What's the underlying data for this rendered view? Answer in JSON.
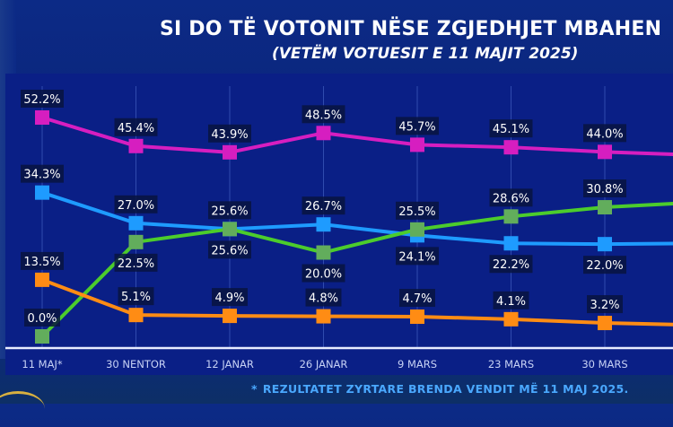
{
  "header": {
    "title": "SI DO TË VOTONIT NËSE ZGJEDHJET MBAHEN",
    "subtitle": "(VETËM VOTUESIT E 11 MAJIT 2025)"
  },
  "footnote": {
    "marker": "*",
    "text": "REZULTATET ZYRTARE BRENDA VENDIT MË 11 MAJ 2025."
  },
  "chart_data": {
    "type": "line",
    "title": "SI DO TË VOTONIT NËSE ZGJEDHJET MBAHEN",
    "subtitle": "(VETËM VOTUESIT E 11 MAJIT 2025)",
    "xlabel": "",
    "ylabel": "",
    "categories": [
      "11 MAJ*",
      "30 NENTOR",
      "12 JANAR",
      "26 JANAR",
      "9 MARS",
      "23 MARS",
      "30 MARS"
    ],
    "ylim": [
      0,
      55
    ],
    "grid": "vertical",
    "legend": "none",
    "marker": "square",
    "series": [
      {
        "name": "magenta",
        "color": "#d61ec0",
        "values": [
          52.2,
          45.4,
          43.9,
          48.5,
          45.7,
          45.1,
          44.0
        ],
        "label_position": "above"
      },
      {
        "name": "blue",
        "color": "#1e9bff",
        "values": [
          34.3,
          27.0,
          25.6,
          26.7,
          24.1,
          22.2,
          22.0
        ],
        "label_position": [
          "above",
          "above",
          "above",
          "above",
          "below",
          "below",
          "below"
        ]
      },
      {
        "name": "green",
        "color": "#4ccc2c",
        "marker_color": "#62ad5c",
        "values": [
          0.0,
          22.5,
          25.6,
          20.0,
          25.5,
          28.6,
          30.8
        ],
        "label_position": [
          "above",
          "below",
          "below",
          "below",
          "above",
          "above",
          "above"
        ]
      },
      {
        "name": "orange",
        "color": "#ff8c14",
        "values": [
          13.5,
          5.1,
          4.9,
          4.8,
          4.7,
          4.1,
          3.2
        ],
        "label_position": "above"
      }
    ],
    "annotations": [
      "* REZULTATET ZYRTARE BRENDA VENDIT MË 11 MAJ 2025."
    ]
  }
}
